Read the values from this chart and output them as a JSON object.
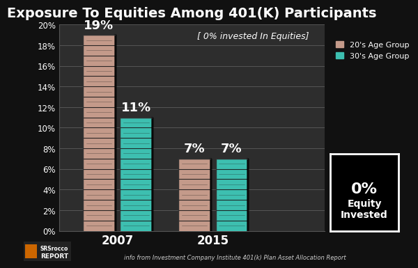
{
  "title": "Exposure To Equities Among 401(K) Participants",
  "subtitle": "[ 0% invested In Equities]",
  "footnote": "info from Investment Company Institute 401(k) Plan Asset Allocation Report",
  "categories": [
    "2007",
    "2015"
  ],
  "series": {
    "20s": [
      19,
      7
    ],
    "30s": [
      11,
      7
    ]
  },
  "bar_colors_20s": [
    "#c49a8a",
    "#c49a8a"
  ],
  "bar_colors_30s": [
    "#3dbfb0",
    "#3dbfb0"
  ],
  "bill_line_color": "#000000",
  "bill_face_color_20s": "#d4a882",
  "bill_face_color_30s": "#2ab8a8",
  "value_labels": {
    "20s": [
      "19%",
      "7%"
    ],
    "30s": [
      "11%",
      "7%"
    ]
  },
  "ylim": [
    0,
    20
  ],
  "yticks": [
    0,
    2,
    4,
    6,
    8,
    10,
    12,
    14,
    16,
    18,
    20
  ],
  "ytick_labels": [
    "0%",
    "2%",
    "4%",
    "6%",
    "8%",
    "10%",
    "12%",
    "14%",
    "16%",
    "18%",
    "20%"
  ],
  "legend_labels": [
    "20's Age Group",
    "30's Age Group"
  ],
  "annotation_box_text": "0%\nEquity\nInvested",
  "background_color": "#111111",
  "plot_bg_color": "#2d2d2d",
  "text_color": "#ffffff",
  "grid_color": "#666666",
  "title_fontsize": 14,
  "label_fontsize": 10,
  "tick_fontsize": 8.5,
  "bar_width": 0.12,
  "x_positions": [
    0.22,
    0.58
  ],
  "bar_separation": 0.14,
  "xlim": [
    0.0,
    1.0
  ]
}
